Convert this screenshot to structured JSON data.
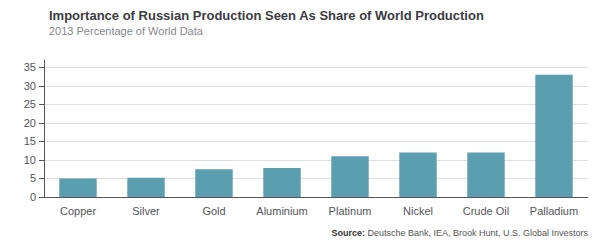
{
  "chart_data": {
    "type": "bar",
    "title": "Importance of Russian Production Seen As Share of World Production",
    "subtitle": "2013 Percentage of World Data",
    "categories": [
      "Copper",
      "Silver",
      "Gold",
      "Aluminium",
      "Platinum",
      "Nickel",
      "Crude Oil",
      "Palladium"
    ],
    "values": [
      5.0,
      5.2,
      7.5,
      7.8,
      11.0,
      12.0,
      12.0,
      33.0
    ],
    "color": "#5b9eb0",
    "ylim": [
      0,
      37
    ],
    "yticks": [
      0,
      5,
      10,
      15,
      20,
      25,
      30,
      35
    ],
    "grid": true,
    "annotations": [
      "Source:",
      "Deutsche Bank, IEA, Brook Hunt, U.S. Global Investors"
    ]
  }
}
